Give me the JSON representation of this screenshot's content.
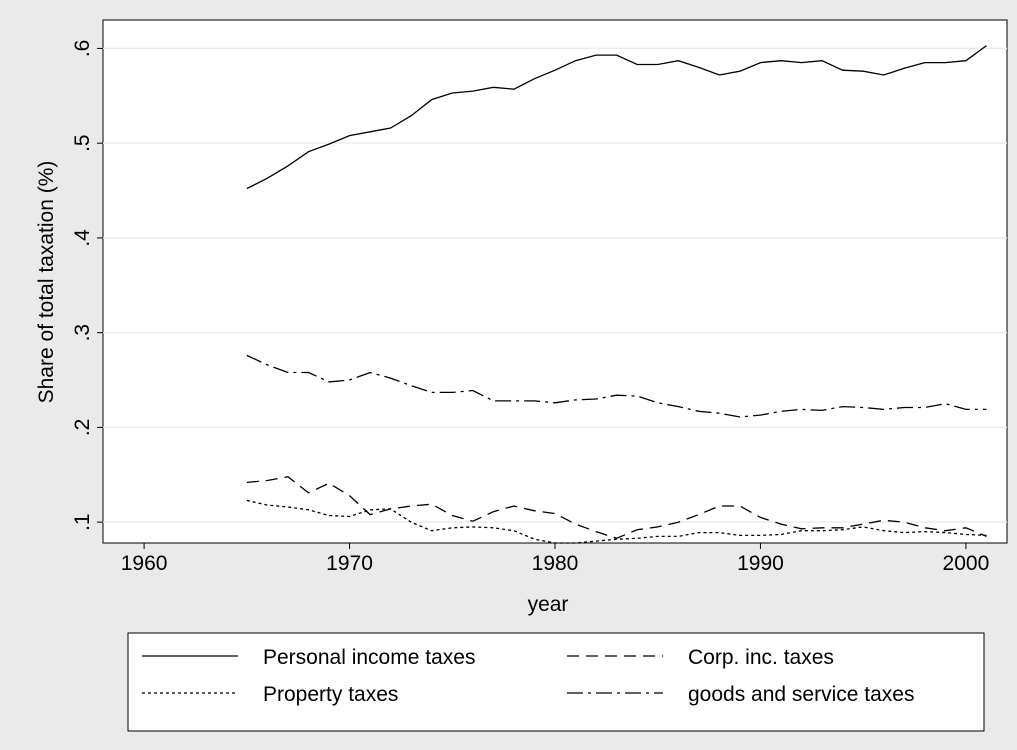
{
  "chart_data": {
    "type": "line",
    "xlabel": "year",
    "ylabel": "Share of total taxation (%)",
    "xlim": [
      1958,
      2002
    ],
    "ylim": [
      0.078,
      0.63
    ],
    "xticks": [
      1960,
      1970,
      1980,
      1990,
      2000
    ],
    "xtick_labels": [
      "1960",
      "1970",
      "1980",
      "1990",
      "2000"
    ],
    "yticks": [
      0.1,
      0.2,
      0.3,
      0.4,
      0.5,
      0.6
    ],
    "ytick_labels": [
      ".1",
      ".2",
      ".3",
      ".4",
      ".5",
      ".6"
    ],
    "grid": "horizontal",
    "legend_position": "bottom",
    "x": [
      1965,
      1966,
      1967,
      1968,
      1969,
      1970,
      1971,
      1972,
      1973,
      1974,
      1975,
      1976,
      1977,
      1978,
      1979,
      1980,
      1981,
      1982,
      1983,
      1984,
      1985,
      1986,
      1987,
      1988,
      1989,
      1990,
      1991,
      1992,
      1993,
      1994,
      1995,
      1996,
      1997,
      1998,
      1999,
      2000,
      2001
    ],
    "series": [
      {
        "name": "Personal income taxes",
        "dash": "",
        "values": [
          0.452,
          0.463,
          0.476,
          0.491,
          0.499,
          0.508,
          0.512,
          0.516,
          0.529,
          0.546,
          0.553,
          0.555,
          0.559,
          0.557,
          0.568,
          0.577,
          0.587,
          0.593,
          0.593,
          0.583,
          0.583,
          0.587,
          0.58,
          0.572,
          0.576,
          0.585,
          0.587,
          0.585,
          0.587,
          0.577,
          0.576,
          0.572,
          0.579,
          0.585,
          0.585,
          0.587,
          0.603
        ]
      },
      {
        "name": "Corp. inc. taxes",
        "dash": "12,7",
        "values": [
          0.142,
          0.144,
          0.148,
          0.131,
          0.141,
          0.128,
          0.108,
          0.114,
          0.117,
          0.119,
          0.107,
          0.101,
          0.111,
          0.117,
          0.112,
          0.109,
          0.098,
          0.09,
          0.083,
          0.092,
          0.095,
          0.1,
          0.108,
          0.117,
          0.117,
          0.105,
          0.098,
          0.093,
          0.094,
          0.094,
          0.098,
          0.102,
          0.1,
          0.094,
          0.091,
          0.094,
          0.085
        ]
      },
      {
        "name": "Property taxes",
        "dash": "3,3",
        "values": [
          0.123,
          0.118,
          0.116,
          0.113,
          0.107,
          0.106,
          0.113,
          0.114,
          0.1,
          0.091,
          0.094,
          0.095,
          0.094,
          0.091,
          0.082,
          0.078,
          0.078,
          0.08,
          0.082,
          0.083,
          0.085,
          0.085,
          0.089,
          0.089,
          0.086,
          0.086,
          0.087,
          0.091,
          0.091,
          0.092,
          0.095,
          0.091,
          0.089,
          0.09,
          0.089,
          0.087,
          0.086
        ]
      },
      {
        "name": "goods and service taxes",
        "dash": "16,5,3,5",
        "values": [
          0.276,
          0.266,
          0.258,
          0.258,
          0.248,
          0.25,
          0.258,
          0.252,
          0.244,
          0.237,
          0.237,
          0.239,
          0.228,
          0.228,
          0.228,
          0.226,
          0.229,
          0.23,
          0.234,
          0.233,
          0.226,
          0.222,
          0.217,
          0.215,
          0.211,
          0.213,
          0.217,
          0.219,
          0.218,
          0.222,
          0.221,
          0.219,
          0.221,
          0.221,
          0.225,
          0.219,
          0.219
        ]
      }
    ]
  }
}
